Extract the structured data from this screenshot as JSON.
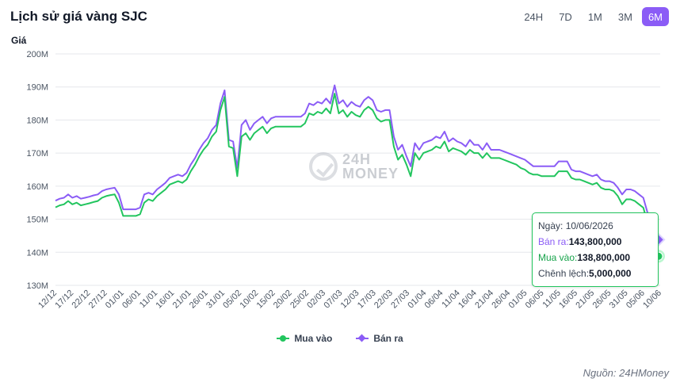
{
  "header": {
    "title": "Lịch sử giá vàng SJC",
    "ranges": [
      {
        "label": "24H",
        "active": false
      },
      {
        "label": "7D",
        "active": false
      },
      {
        "label": "1M",
        "active": false
      },
      {
        "label": "3M",
        "active": false
      },
      {
        "label": "6M",
        "active": true
      }
    ]
  },
  "watermark": {
    "line1": "24H",
    "line2": "MONEY"
  },
  "tooltip": {
    "date_label": "Ngày:",
    "date_value": "10/06/2026",
    "sell_label": "Bán ra:",
    "sell_value": "143,800,000",
    "buy_label": "Mua vào:",
    "buy_value": "138,800,000",
    "diff_label": "Chênh lệch:",
    "diff_value": "5,000,000"
  },
  "source": "Nguồn: 24HMoney",
  "colors": {
    "buy": "#22c55e",
    "sell": "#8b5cf6",
    "grid": "#e5e7eb",
    "axis_text": "#4b5563"
  },
  "chart_data": {
    "type": "line",
    "ylabel": "Giá",
    "ylim": [
      130000000,
      200000000
    ],
    "y_ticks": [
      {
        "value": 130000000,
        "label": "130M"
      },
      {
        "value": 140000000,
        "label": "140M"
      },
      {
        "value": 150000000,
        "label": "150M"
      },
      {
        "value": 160000000,
        "label": "160M"
      },
      {
        "value": 170000000,
        "label": "170M"
      },
      {
        "value": 180000000,
        "label": "180M"
      },
      {
        "value": 190000000,
        "label": "190M"
      },
      {
        "value": 200000000,
        "label": "200M"
      }
    ],
    "x_ticks": [
      "12/12",
      "17/12",
      "22/12",
      "27/12",
      "01/01",
      "06/01",
      "11/01",
      "16/01",
      "21/01",
      "26/01",
      "31/01",
      "05/02",
      "10/02",
      "15/02",
      "20/02",
      "25/02",
      "02/03",
      "07/03",
      "12/03",
      "17/03",
      "22/03",
      "27/03",
      "01/04",
      "06/04",
      "11/04",
      "16/04",
      "21/04",
      "26/04",
      "01/05",
      "06/05",
      "11/05",
      "16/05",
      "21/05",
      "26/05",
      "31/05",
      "05/06",
      "10/06"
    ],
    "series": [
      {
        "name": "Mua vào",
        "values": [
          153.6,
          154.2,
          154.5,
          155.5,
          154.5,
          155.0,
          154.2,
          154.5,
          154.8,
          155.2,
          155.5,
          156.5,
          157.0,
          157.3,
          157.5,
          155.0,
          151.0,
          151.0,
          151.0,
          151.0,
          151.5,
          155.0,
          156.0,
          155.5,
          157.0,
          158.0,
          159.0,
          160.5,
          161.0,
          161.5,
          161.0,
          162.0,
          164.5,
          166.5,
          169.0,
          171.0,
          172.5,
          175.0,
          176.5,
          183.0,
          187.0,
          172.0,
          171.5,
          163.0,
          175.0,
          176.0,
          174.0,
          176.0,
          177.0,
          178.0,
          176.0,
          177.5,
          178.0,
          178.0,
          178.0,
          178.0,
          178.0,
          178.0,
          178.0,
          179.0,
          182.0,
          181.5,
          182.5,
          182.0,
          183.5,
          182.0,
          188.0,
          182.0,
          183.0,
          181.0,
          182.5,
          181.5,
          181.0,
          183.0,
          184.0,
          183.0,
          180.5,
          179.5,
          180.0,
          180.0,
          172.0,
          168.0,
          169.5,
          166.5,
          163.0,
          170.0,
          168.0,
          170.0,
          170.5,
          171.0,
          172.0,
          171.5,
          173.5,
          170.5,
          171.5,
          171.0,
          170.5,
          169.5,
          171.0,
          170.0,
          170.0,
          168.5,
          170.0,
          168.5,
          168.5,
          168.5,
          168.0,
          167.5,
          167.0,
          166.5,
          165.5,
          165.0,
          164.0,
          163.5,
          163.5,
          163.0,
          163.0,
          163.0,
          163.0,
          164.5,
          164.5,
          164.5,
          162.5,
          162.0,
          162.0,
          161.5,
          161.0,
          160.5,
          161.0,
          159.5,
          159.0,
          159.0,
          158.5,
          157.0,
          154.5,
          156.0,
          156.0,
          155.5,
          154.5,
          153.5,
          149.0,
          145.5,
          140.0,
          138.8
        ]
      },
      {
        "name": "Bán ra",
        "values": [
          155.6,
          156.2,
          156.5,
          157.5,
          156.5,
          157.0,
          156.2,
          156.5,
          156.8,
          157.2,
          157.5,
          158.5,
          159.0,
          159.3,
          159.5,
          157.5,
          153.0,
          153.0,
          153.0,
          153.0,
          153.5,
          157.5,
          158.0,
          157.5,
          159.0,
          160.0,
          161.0,
          162.5,
          163.0,
          163.5,
          163.0,
          164.0,
          166.5,
          168.5,
          171.0,
          173.0,
          174.5,
          177.0,
          178.5,
          185.0,
          189.0,
          174.0,
          173.5,
          165.5,
          178.5,
          180.0,
          177.0,
          179.0,
          180.0,
          181.0,
          179.0,
          180.5,
          181.0,
          181.0,
          181.0,
          181.0,
          181.0,
          181.0,
          181.0,
          182.0,
          185.0,
          184.5,
          185.5,
          185.0,
          186.5,
          185.0,
          190.5,
          185.0,
          186.0,
          184.0,
          185.5,
          184.5,
          184.0,
          186.0,
          187.0,
          186.0,
          183.0,
          182.5,
          183.0,
          183.0,
          175.0,
          171.0,
          172.5,
          169.0,
          166.0,
          173.0,
          171.0,
          173.0,
          173.5,
          174.0,
          175.0,
          174.5,
          176.5,
          173.5,
          174.5,
          173.5,
          173.0,
          172.0,
          174.0,
          172.5,
          172.5,
          171.0,
          173.0,
          171.0,
          171.0,
          171.0,
          170.5,
          170.0,
          169.5,
          169.0,
          168.5,
          168.0,
          167.0,
          166.0,
          166.0,
          166.0,
          166.0,
          166.0,
          166.0,
          167.5,
          167.5,
          167.5,
          165.0,
          164.5,
          164.5,
          164.0,
          163.5,
          163.0,
          163.5,
          162.0,
          161.5,
          161.5,
          161.0,
          159.5,
          157.5,
          159.0,
          159.0,
          158.5,
          157.5,
          156.5,
          152.0,
          149.5,
          145.5,
          143.8
        ]
      }
    ],
    "legend_position": "bottom-center",
    "grid": true
  }
}
